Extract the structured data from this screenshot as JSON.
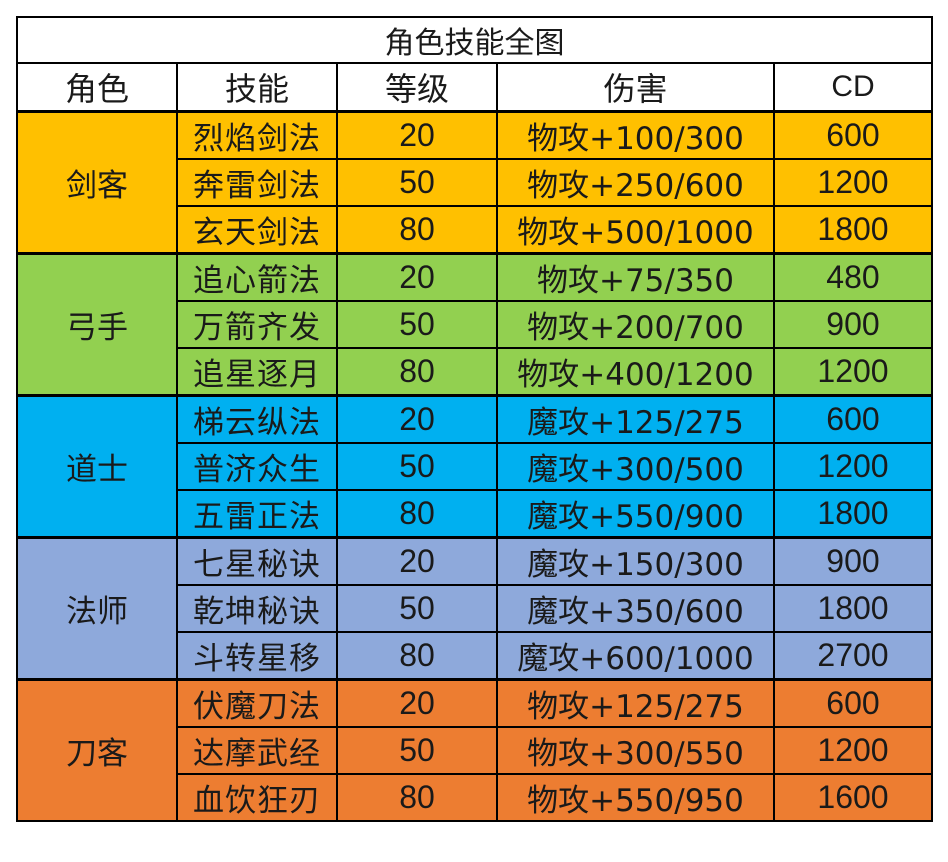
{
  "title": "角色技能全图",
  "headers": {
    "role": "角色",
    "skill": "技能",
    "level": "等级",
    "damage": "伤害",
    "cd": "CD"
  },
  "groups": [
    {
      "role": "剑客",
      "color": "#FFC000",
      "skills": [
        {
          "name": "烈焰剑法",
          "level": "20",
          "damage": "物攻+100/300",
          "cd": "600"
        },
        {
          "name": "奔雷剑法",
          "level": "50",
          "damage": "物攻+250/600",
          "cd": "1200"
        },
        {
          "name": "玄天剑法",
          "level": "80",
          "damage": "物攻+500/1000",
          "cd": "1800"
        }
      ]
    },
    {
      "role": "弓手",
      "color": "#92D050",
      "skills": [
        {
          "name": "追心箭法",
          "level": "20",
          "damage": "物攻+75/350",
          "cd": "480"
        },
        {
          "name": "万箭齐发",
          "level": "50",
          "damage": "物攻+200/700",
          "cd": "900"
        },
        {
          "name": "追星逐月",
          "level": "80",
          "damage": "物攻+400/1200",
          "cd": "1200"
        }
      ]
    },
    {
      "role": "道士",
      "color": "#00B0F0",
      "skills": [
        {
          "name": "梯云纵法",
          "level": "20",
          "damage": "魔攻+125/275",
          "cd": "600"
        },
        {
          "name": "普济众生",
          "level": "50",
          "damage": "魔攻+300/500",
          "cd": "1200"
        },
        {
          "name": "五雷正法",
          "level": "80",
          "damage": "魔攻+550/900",
          "cd": "1800"
        }
      ]
    },
    {
      "role": "法师",
      "color": "#8EA9DB",
      "skills": [
        {
          "name": "七星秘诀",
          "level": "20",
          "damage": "魔攻+150/300",
          "cd": "900"
        },
        {
          "name": "乾坤秘诀",
          "level": "50",
          "damage": "魔攻+350/600",
          "cd": "1800"
        },
        {
          "name": "斗转星移",
          "level": "80",
          "damage": "魔攻+600/1000",
          "cd": "2700"
        }
      ]
    },
    {
      "role": "刀客",
      "color": "#ED7D31",
      "skills": [
        {
          "name": "伏魔刀法",
          "level": "20",
          "damage": "物攻+125/275",
          "cd": "600"
        },
        {
          "name": "达摩武经",
          "level": "50",
          "damage": "物攻+300/550",
          "cd": "1200"
        },
        {
          "name": "血饮狂刃",
          "level": "80",
          "damage": "物攻+550/950",
          "cd": "1600"
        }
      ]
    }
  ]
}
